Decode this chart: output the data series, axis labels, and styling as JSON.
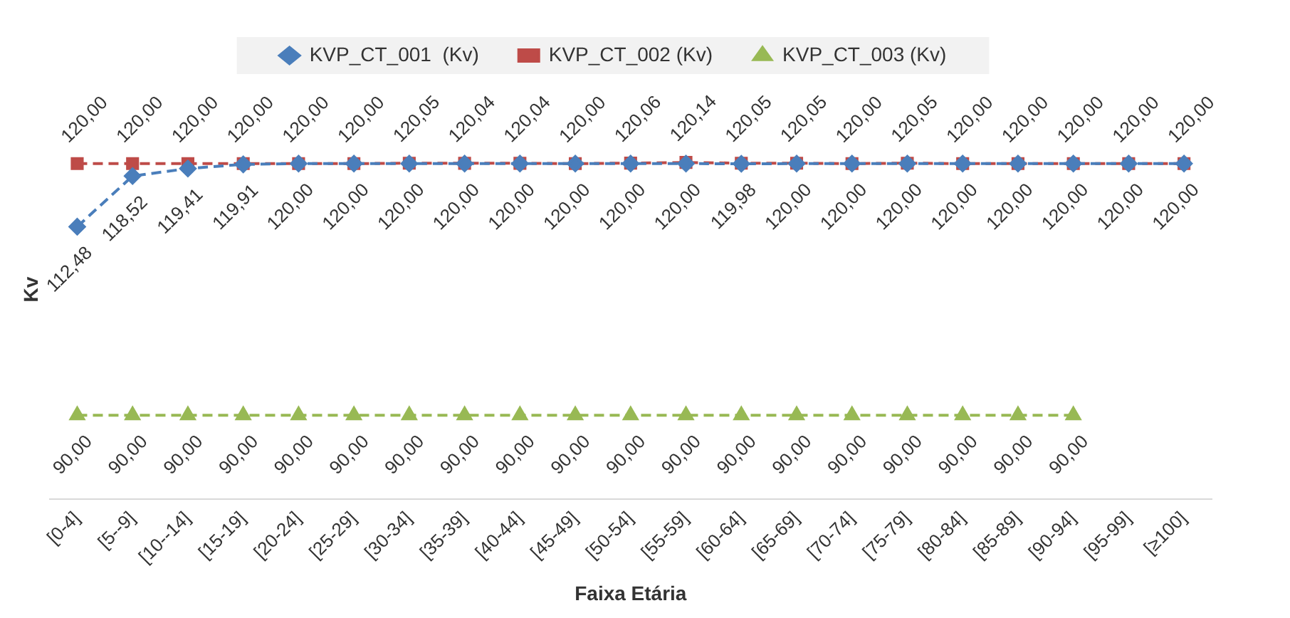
{
  "chart_data": {
    "type": "line",
    "xlabel": "Faixa Etária",
    "ylabel": "Kv",
    "categories": [
      "[0-4]",
      "[5--9]",
      "[10--14]",
      "[15-19]",
      "[20-24]",
      "[25-29]",
      "[30-34]",
      "[35-39]",
      "[40-44]",
      "[45-49]",
      "[50-54]",
      "[55-59]",
      "[60-64]",
      "[65-69]",
      "[70-74]",
      "[75-79]",
      "[80-84]",
      "[85-89]",
      "[90-94]",
      "[95-99]",
      "[≥100]"
    ],
    "tick_labels": "x",
    "legend": "top",
    "grid": false,
    "line_style": "dashed",
    "series": [
      {
        "name": "KVP_CT_001  (Kv)",
        "color": "#4a7ebb",
        "marker": "diamond",
        "values": [
          112.48,
          118.52,
          119.41,
          119.91,
          120,
          120,
          120,
          120,
          120,
          120,
          120,
          120,
          119.98,
          120,
          120,
          120,
          120,
          120,
          120,
          120,
          120
        ],
        "value_labels": [
          "112,48",
          "118,52",
          "119,41",
          "119,91",
          "120,00",
          "120,00",
          "120,00",
          "120,00",
          "120,00",
          "120,00",
          "120,00",
          "120,00",
          "119,98",
          "120,00",
          "120,00",
          "120,00",
          "120,00",
          "120,00",
          "120,00",
          "120,00",
          "120,00"
        ]
      },
      {
        "name": "KVP_CT_002 (Kv)",
        "color": "#be4b48",
        "marker": "square",
        "values": [
          120,
          120,
          120,
          120,
          120,
          120,
          120.05,
          120.04,
          120.04,
          120,
          120.06,
          120.14,
          120.05,
          120.05,
          120,
          120.05,
          120,
          120,
          120,
          120,
          120
        ],
        "value_labels": [
          "120,00",
          "120,00",
          "120,00",
          "120,00",
          "120,00",
          "120,00",
          "120,05",
          "120,04",
          "120,04",
          "120,00",
          "120,06",
          "120,14",
          "120,05",
          "120,05",
          "120,00",
          "120,05",
          "120,00",
          "120,00",
          "120,00",
          "120,00",
          "120,00"
        ]
      },
      {
        "name": "KVP_CT_003 (Kv)",
        "color": "#98b954",
        "marker": "triangle",
        "values": [
          90,
          90,
          90,
          90,
          90,
          90,
          90,
          90,
          90,
          90,
          90,
          90,
          90,
          90,
          90,
          90,
          90,
          90,
          90,
          null,
          null
        ],
        "value_labels": [
          "90,00",
          "90,00",
          "90,00",
          "90,00",
          "90,00",
          "90,00",
          "90,00",
          "90,00",
          "90,00",
          "90,00",
          "90,00",
          "90,00",
          "90,00",
          "90,00",
          "90,00",
          "90,00",
          "90,00",
          "90,00",
          "90,00",
          null,
          null
        ]
      }
    ]
  }
}
